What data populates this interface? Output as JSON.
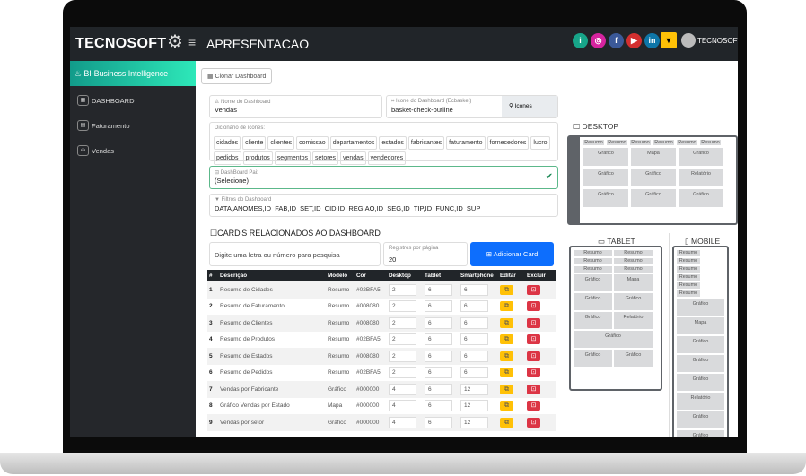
{
  "header": {
    "logo": "TECNOSOFT",
    "title": "APRESENTACAO",
    "user": "TECNOSOFT",
    "social": [
      {
        "name": "info",
        "label": "i",
        "color": "#17a589"
      },
      {
        "name": "instagram",
        "label": "◎",
        "color": "#d6249f"
      },
      {
        "name": "facebook",
        "label": "f",
        "color": "#3b5998"
      },
      {
        "name": "youtube",
        "label": "▶",
        "color": "#d32f2f"
      },
      {
        "name": "linkedin",
        "label": "in",
        "color": "#0e76a8"
      }
    ]
  },
  "sidebar": {
    "brand": "♨ BI-Business Intelligence",
    "items": [
      {
        "label": "DASHBOARD",
        "icon": "▦"
      },
      {
        "label": "Faturamento",
        "icon": "▤"
      },
      {
        "label": "Vendas",
        "icon": "⛀"
      }
    ]
  },
  "toolbar": {
    "clone": "▦ Clonar Dashboard"
  },
  "form": {
    "name_label": "♙ Nome do Dashboard",
    "name_value": "Vendas",
    "icon_label": "⌗ Icone do Dashboard (Ecbasket)",
    "icon_value": "basket-check-outline",
    "icons_button": "⚲ Icones",
    "dict_label": "Dicionário de ícones:",
    "dict": [
      "cidades",
      "cliente",
      "clientes",
      "comissao",
      "departamentos",
      "estados",
      "fabricantes",
      "faturamento",
      "fornecedores",
      "lucro",
      "pedidos",
      "produtos",
      "segmentos",
      "setores",
      "vendas",
      "vendedores"
    ],
    "parent_label": "⊟ DashBoard Pai:",
    "parent_value": "(Selecione)",
    "filters_label": "▼ Filtros do Dashboard",
    "filters_value": "DATA,ANOMES,ID_FAB,ID_SET,ID_CID,ID_REGIAO,ID_SEG,ID_TIP,ID_FUNC,ID_SUP"
  },
  "cards": {
    "title": "☐CARD'S RELACIONADOS AO DASHBOARD",
    "search_placeholder": "Digite uma letra ou número para pesquisa",
    "per_page_label": "Registros por página",
    "per_page": "20",
    "add": "⊞ Adicionar Card",
    "columns": [
      "#",
      "Descrição",
      "Modelo",
      "Cor",
      "Desktop",
      "Tablet",
      "Smartphone",
      "Editar",
      "Excluir"
    ],
    "rows": [
      [
        "1",
        "Resumo de Cidades",
        "Resumo",
        "#02BFA5",
        "2",
        "6",
        "6"
      ],
      [
        "2",
        "Resumo de Faturamento",
        "Resumo",
        "#008080",
        "2",
        "6",
        "6"
      ],
      [
        "3",
        "Resumo de Clientes",
        "Resumo",
        "#008080",
        "2",
        "6",
        "6"
      ],
      [
        "4",
        "Resumo de Produtos",
        "Resumo",
        "#02BFA5",
        "2",
        "6",
        "6"
      ],
      [
        "5",
        "Resumo de Estados",
        "Resumo",
        "#008080",
        "2",
        "6",
        "6"
      ],
      [
        "6",
        "Resumo de Pedidos",
        "Resumo",
        "#02BFA5",
        "2",
        "6",
        "6"
      ],
      [
        "7",
        "Vendas por Fabricante",
        "Gráfico",
        "#000000",
        "4",
        "6",
        "12"
      ],
      [
        "8",
        "Gráfico Vendas por Estado",
        "Mapa",
        "#000000",
        "4",
        "6",
        "12"
      ],
      [
        "9",
        "Vendas por setor",
        "Gráfico",
        "#000000",
        "4",
        "6",
        "12"
      ]
    ]
  },
  "preview": {
    "desktop_title": "🖵 DESKTOP",
    "tablet_title": "▭ TABLET",
    "mobile_title": "▯ MOBILE",
    "resumo": "Resumo",
    "layout": [
      "Gráfico",
      "Mapa",
      "Gráfico",
      "Gráfico",
      "Gráfico",
      "Relatório",
      "Gráfico",
      "Gráfico",
      "Gráfico"
    ]
  }
}
